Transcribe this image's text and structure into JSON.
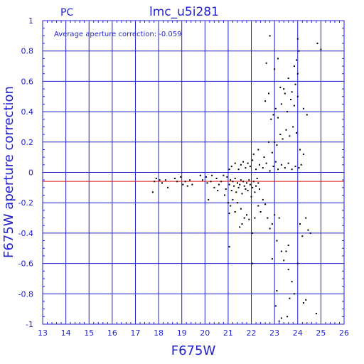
{
  "header": {
    "left_label": "PC",
    "title": "lmc_u5i281"
  },
  "chart_data": {
    "type": "scatter",
    "title": "lmc_u5i281",
    "xlabel": "F675W",
    "ylabel": "F675W aperture correction",
    "annotation": "Average aperture correction: -0.059",
    "xlim": [
      13,
      26
    ],
    "ylim": [
      -1,
      1
    ],
    "x_ticks": [
      "13",
      "14",
      "15",
      "16",
      "17",
      "18",
      "19",
      "20",
      "21",
      "22",
      "23",
      "24",
      "25",
      "26"
    ],
    "y_ticks": [
      "1",
      "0.8",
      "0.6",
      "0.4",
      "0.2",
      "0",
      "-0.2",
      "-0.4",
      "-0.6",
      "-0.8",
      "-1"
    ],
    "grid": true,
    "reference_lines": [
      {
        "y": 0,
        "color": "#1f1fd0"
      },
      {
        "y": -0.059,
        "color": "#e01010"
      }
    ],
    "colors": {
      "axis": "#1f1fd0",
      "grid": "#1f1fd0",
      "points": "#000000",
      "average_line": "#e01010"
    },
    "points": [
      [
        17.75,
        -0.13
      ],
      [
        17.82,
        -0.06
      ],
      [
        17.9,
        -0.04
      ],
      [
        18.05,
        -0.05
      ],
      [
        18.15,
        -0.07
      ],
      [
        18.3,
        -0.05
      ],
      [
        18.4,
        -0.1
      ],
      [
        18.7,
        -0.04
      ],
      [
        18.8,
        -0.06
      ],
      [
        18.95,
        -0.03
      ],
      [
        19.05,
        -0.08
      ],
      [
        19.15,
        -0.06
      ],
      [
        19.25,
        -0.09
      ],
      [
        19.35,
        -0.05
      ],
      [
        19.45,
        -0.08
      ],
      [
        19.8,
        -0.02
      ],
      [
        19.9,
        -0.05
      ],
      [
        20.05,
        -0.03
      ],
      [
        20.1,
        -0.07
      ],
      [
        20.15,
        -0.18
      ],
      [
        20.25,
        -0.06
      ],
      [
        20.3,
        -0.02
      ],
      [
        20.4,
        -0.1
      ],
      [
        20.5,
        -0.04
      ],
      [
        20.55,
        -0.12
      ],
      [
        20.6,
        -0.08
      ],
      [
        20.7,
        -0.06
      ],
      [
        20.8,
        -0.02
      ],
      [
        20.85,
        -0.15
      ],
      [
        20.9,
        -0.11
      ],
      [
        20.95,
        -0.03
      ],
      [
        21.05,
        -0.08
      ],
      [
        21.1,
        -0.05
      ],
      [
        21.15,
        -0.12
      ],
      [
        21.2,
        -0.06
      ],
      [
        21.25,
        -0.09
      ],
      [
        21.3,
        -0.04
      ],
      [
        21.35,
        -0.13
      ],
      [
        21.4,
        -0.07
      ],
      [
        21.45,
        -0.1
      ],
      [
        21.5,
        -0.08
      ],
      [
        21.55,
        -0.05
      ],
      [
        21.6,
        -0.14
      ],
      [
        21.65,
        -0.06
      ],
      [
        21.7,
        -0.09
      ],
      [
        21.75,
        -0.11
      ],
      [
        21.8,
        -0.07
      ],
      [
        21.85,
        -0.12
      ],
      [
        21.9,
        -0.05
      ],
      [
        21.95,
        -0.08
      ],
      [
        22.0,
        -0.16
      ],
      [
        22.05,
        -0.1
      ],
      [
        22.1,
        -0.06
      ],
      [
        22.15,
        -0.13
      ],
      [
        22.2,
        -0.09
      ],
      [
        22.25,
        -0.04
      ],
      [
        22.3,
        -0.07
      ],
      [
        22.35,
        -0.11
      ],
      [
        21.0,
        -0.2
      ],
      [
        21.1,
        -0.22
      ],
      [
        21.2,
        -0.18
      ],
      [
        21.05,
        -0.27
      ],
      [
        21.3,
        -0.26
      ],
      [
        21.4,
        -0.2
      ],
      [
        21.55,
        -0.24
      ],
      [
        21.6,
        -0.34
      ],
      [
        21.5,
        -0.36
      ],
      [
        21.7,
        -0.3
      ],
      [
        21.8,
        -0.28
      ],
      [
        21.9,
        -0.31
      ],
      [
        22.05,
        -0.4
      ],
      [
        22.15,
        -0.3
      ],
      [
        22.3,
        -0.22
      ],
      [
        22.4,
        -0.26
      ],
      [
        22.5,
        -0.18
      ],
      [
        22.6,
        -0.21
      ],
      [
        22.7,
        -0.3
      ],
      [
        22.8,
        -0.37
      ],
      [
        22.9,
        -0.34
      ],
      [
        23.0,
        -0.28
      ],
      [
        23.1,
        -0.45
      ],
      [
        23.2,
        -0.3
      ],
      [
        23.3,
        -0.52
      ],
      [
        23.4,
        -0.58
      ],
      [
        23.5,
        -0.52
      ],
      [
        23.6,
        -0.64
      ],
      [
        23.75,
        -0.72
      ],
      [
        23.85,
        -0.8
      ],
      [
        24.0,
        -0.6
      ],
      [
        24.1,
        -0.34
      ],
      [
        24.2,
        -0.42
      ],
      [
        24.35,
        -0.3
      ],
      [
        24.45,
        -0.38
      ],
      [
        24.55,
        -0.4
      ],
      [
        21.05,
        -0.49
      ],
      [
        22.05,
        -0.6
      ],
      [
        22.9,
        -0.57
      ],
      [
        23.05,
        -0.88
      ],
      [
        23.2,
        -0.98
      ],
      [
        23.3,
        -0.96
      ],
      [
        23.55,
        -0.95
      ],
      [
        23.65,
        -0.83
      ],
      [
        24.25,
        -0.86
      ],
      [
        24.35,
        -0.84
      ],
      [
        24.8,
        -0.93
      ],
      [
        23.1,
        -0.78
      ],
      [
        23.6,
        -0.48
      ],
      [
        21.05,
        0.02
      ],
      [
        21.15,
        0.04
      ],
      [
        21.3,
        0.06
      ],
      [
        21.45,
        0.02
      ],
      [
        21.55,
        0.05
      ],
      [
        21.65,
        0.07
      ],
      [
        21.75,
        0.03
      ],
      [
        21.85,
        0.06
      ],
      [
        21.95,
        0.04
      ],
      [
        22.05,
        0.08
      ],
      [
        22.2,
        0.02
      ],
      [
        22.35,
        0.05
      ],
      [
        22.5,
        0.03
      ],
      [
        22.65,
        0.06
      ],
      [
        22.8,
        0.01
      ],
      [
        22.95,
        0.04
      ],
      [
        23.05,
        0.07
      ],
      [
        23.15,
        0.02
      ],
      [
        23.3,
        0.05
      ],
      [
        23.45,
        0.03
      ],
      [
        23.6,
        0.06
      ],
      [
        23.75,
        0.02
      ],
      [
        23.9,
        0.04
      ],
      [
        24.05,
        0.03
      ],
      [
        24.15,
        0.05
      ],
      [
        22.1,
        0.12
      ],
      [
        22.3,
        0.15
      ],
      [
        22.55,
        0.1
      ],
      [
        22.75,
        0.2
      ],
      [
        22.9,
        0.13
      ],
      [
        23.0,
        0.2
      ],
      [
        23.1,
        0.18
      ],
      [
        23.25,
        0.25
      ],
      [
        23.35,
        0.22
      ],
      [
        23.5,
        0.28
      ],
      [
        23.65,
        0.24
      ],
      [
        23.8,
        0.3
      ],
      [
        23.95,
        0.26
      ],
      [
        24.1,
        0.15
      ],
      [
        24.25,
        0.12
      ],
      [
        22.85,
        0.35
      ],
      [
        22.95,
        0.38
      ],
      [
        23.05,
        0.42
      ],
      [
        23.15,
        0.36
      ],
      [
        23.3,
        0.45
      ],
      [
        23.45,
        0.52
      ],
      [
        23.55,
        0.4
      ],
      [
        23.7,
        0.48
      ],
      [
        23.85,
        0.44
      ],
      [
        24.0,
        0.5
      ],
      [
        24.25,
        0.42
      ],
      [
        24.4,
        0.38
      ],
      [
        23.25,
        0.56
      ],
      [
        23.4,
        0.55
      ],
      [
        23.6,
        0.62
      ],
      [
        23.75,
        0.53
      ],
      [
        23.9,
        0.58
      ],
      [
        24.0,
        0.65
      ],
      [
        23.0,
        0.68
      ],
      [
        23.15,
        0.75
      ],
      [
        23.85,
        0.7
      ],
      [
        23.95,
        0.74
      ],
      [
        24.05,
        0.8
      ],
      [
        24.0,
        0.88
      ],
      [
        22.65,
        0.72
      ],
      [
        22.8,
        0.9
      ],
      [
        24.85,
        0.85
      ],
      [
        25.0,
        0.81
      ],
      [
        22.6,
        0.47
      ],
      [
        22.75,
        0.52
      ]
    ]
  }
}
